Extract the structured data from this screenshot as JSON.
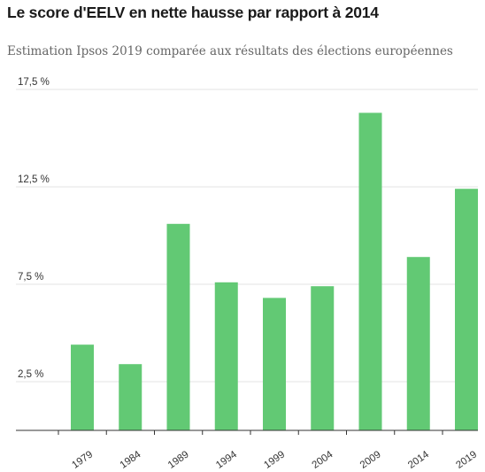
{
  "header": {
    "title": "Le score d'EELV en nette hausse par rapport à 2014",
    "subtitle": "Estimation Ipsos 2019 comparée aux résultats des élections européennes"
  },
  "colors": {
    "bar": "#62c974",
    "grid": "#e3e3e3",
    "axis": "#333333"
  },
  "chart_data": {
    "type": "bar",
    "categories": [
      "1979",
      "1984",
      "1989",
      "1994",
      "1999",
      "2004",
      "2009",
      "2014",
      "2019"
    ],
    "values": [
      4.4,
      3.4,
      10.6,
      7.6,
      6.8,
      7.4,
      16.3,
      8.9,
      12.4
    ],
    "y_ticks": [
      2.5,
      7.5,
      12.5,
      17.5
    ],
    "y_tick_labels": [
      "2,5 %",
      "7,5 %",
      "12,5 %",
      "17,5 %"
    ],
    "ylim": [
      0,
      17.5
    ],
    "grid": true,
    "xlabel": "",
    "ylabel": ""
  }
}
